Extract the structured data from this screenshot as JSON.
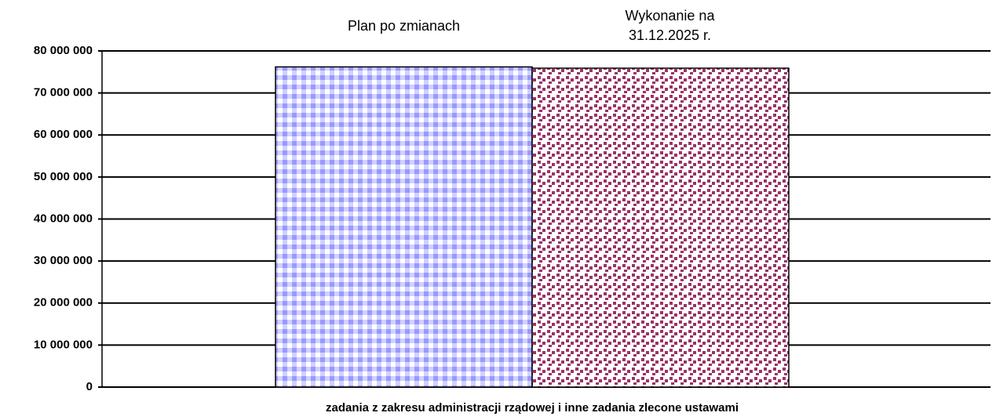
{
  "chart_data": {
    "type": "bar",
    "categories": [
      "zadania z zakresu administracji rządowej i inne zadania zlecone ustawami"
    ],
    "series": [
      {
        "name": "Plan po zmianach",
        "color": "#9999ff",
        "values": [
          76200000
        ]
      },
      {
        "name": "Wykonanie na 31.12.2025 r.",
        "color": "#993366",
        "values": [
          75900000
        ]
      }
    ],
    "ylim": [
      0,
      80000000
    ],
    "yticks": [
      {
        "value": 0,
        "label": "0"
      },
      {
        "value": 10000000,
        "label": "10 000 000"
      },
      {
        "value": 20000000,
        "label": "20 000 000"
      },
      {
        "value": 30000000,
        "label": "30 000 000"
      },
      {
        "value": 40000000,
        "label": "40 000 000"
      },
      {
        "value": 50000000,
        "label": "50 000 000"
      },
      {
        "value": 60000000,
        "label": "60 000 000"
      },
      {
        "value": 70000000,
        "label": "70 000 000"
      },
      {
        "value": 80000000,
        "label": "80 000 000"
      }
    ],
    "grid": true
  }
}
